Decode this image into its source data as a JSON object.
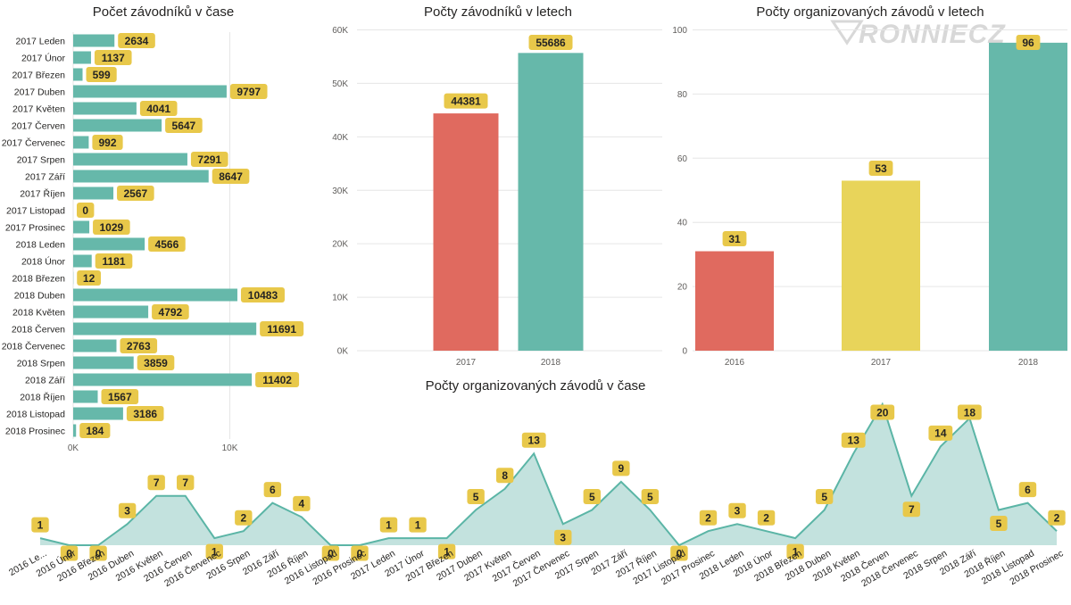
{
  "watermark": "RONNIECZ",
  "colors": {
    "teal": "#66b8aa",
    "red": "#e06a5f",
    "yellow": "#e8d45a",
    "label_bg": "#e8c84a",
    "area_fill": "#c3e2de",
    "area_line": "#5bb5a6",
    "grid": "#e6e6e6"
  },
  "chart_data": [
    {
      "id": "monthly_racers",
      "type": "bar",
      "orientation": "horizontal",
      "title": "Počet závodníků v čase",
      "categories": [
        "2017 Leden",
        "2017 Únor",
        "2017 Březen",
        "2017 Duben",
        "2017 Květen",
        "2017 Červen",
        "2017 Červenec",
        "2017 Srpen",
        "2017 Září",
        "2017 Říjen",
        "2017 Listopad",
        "2017 Prosinec",
        "2018 Leden",
        "2018 Únor",
        "2018 Březen",
        "2018 Duben",
        "2018 Květen",
        "2018 Červen",
        "2018 Červenec",
        "2018 Srpen",
        "2018 Září",
        "2018 Říjen",
        "2018 Listopad",
        "2018 Prosinec"
      ],
      "values": [
        2634,
        1137,
        599,
        9797,
        4041,
        5647,
        992,
        7291,
        8647,
        2567,
        0,
        1029,
        4566,
        1181,
        12,
        10483,
        4792,
        11691,
        2763,
        3859,
        11402,
        1567,
        3186,
        184
      ],
      "xlim": [
        0,
        15500
      ],
      "xticks": [
        0,
        10000
      ],
      "xtick_labels": [
        "0K",
        "10K"
      ],
      "color": "#66b8aa"
    },
    {
      "id": "racers_by_year",
      "type": "bar",
      "title": "Počty závodníků v letech",
      "categories": [
        "2017",
        "2018"
      ],
      "values": [
        44381,
        55686
      ],
      "colors": [
        "#e06a5f",
        "#66b8aa"
      ],
      "ylim": [
        0,
        60000
      ],
      "yticks": [
        0,
        10000,
        20000,
        30000,
        40000,
        50000,
        60000
      ],
      "ytick_labels": [
        "0K",
        "10K",
        "20K",
        "30K",
        "40K",
        "50K",
        "60K"
      ]
    },
    {
      "id": "races_by_year",
      "type": "bar",
      "title": "Počty organizovaných závodů v letech",
      "categories": [
        "2016",
        "2017",
        "2018"
      ],
      "values": [
        31,
        53,
        96
      ],
      "colors": [
        "#e06a5f",
        "#e8d45a",
        "#66b8aa"
      ],
      "ylim": [
        0,
        100
      ],
      "yticks": [
        0,
        20,
        40,
        60,
        80,
        100
      ],
      "ytick_labels": [
        "0",
        "20",
        "40",
        "60",
        "80",
        "100"
      ]
    },
    {
      "id": "races_over_time",
      "type": "area",
      "title": "Počty organizovaných závodů v čase",
      "categories": [
        "2016 Le...",
        "2016 Únor",
        "2016 Březen",
        "2016 Duben",
        "2016 Květen",
        "2016 Červen",
        "2016 Červenec",
        "2016 Srpen",
        "2016 Září",
        "2016 Říjen",
        "2016 Listopad",
        "2016 Prosinec",
        "2017 Leden",
        "2017 Únor",
        "2017 Březen",
        "2017 Duben",
        "2017 Květen",
        "2017 Červen",
        "2017 Červenec",
        "2017 Srpen",
        "2017 Září",
        "2017 Říjen",
        "2017 Listopad",
        "2017 Prosinec",
        "2018 Leden",
        "2018 Únor",
        "2018 Březen",
        "2018 Duben",
        "2018 Květen",
        "2018 Červen",
        "2018 Červenec",
        "2018 Srpen",
        "2018 Září",
        "2018 Říjen",
        "2018 Listopad",
        "2018 Prosinec"
      ],
      "values": [
        1,
        0,
        0,
        3,
        7,
        7,
        1,
        2,
        6,
        4,
        0,
        0,
        1,
        1,
        1,
        5,
        8,
        13,
        3,
        5,
        9,
        5,
        0,
        2,
        3,
        2,
        1,
        5,
        13,
        20,
        7,
        14,
        18,
        5,
        6,
        2
      ],
      "ylim": [
        0,
        20
      ]
    }
  ]
}
